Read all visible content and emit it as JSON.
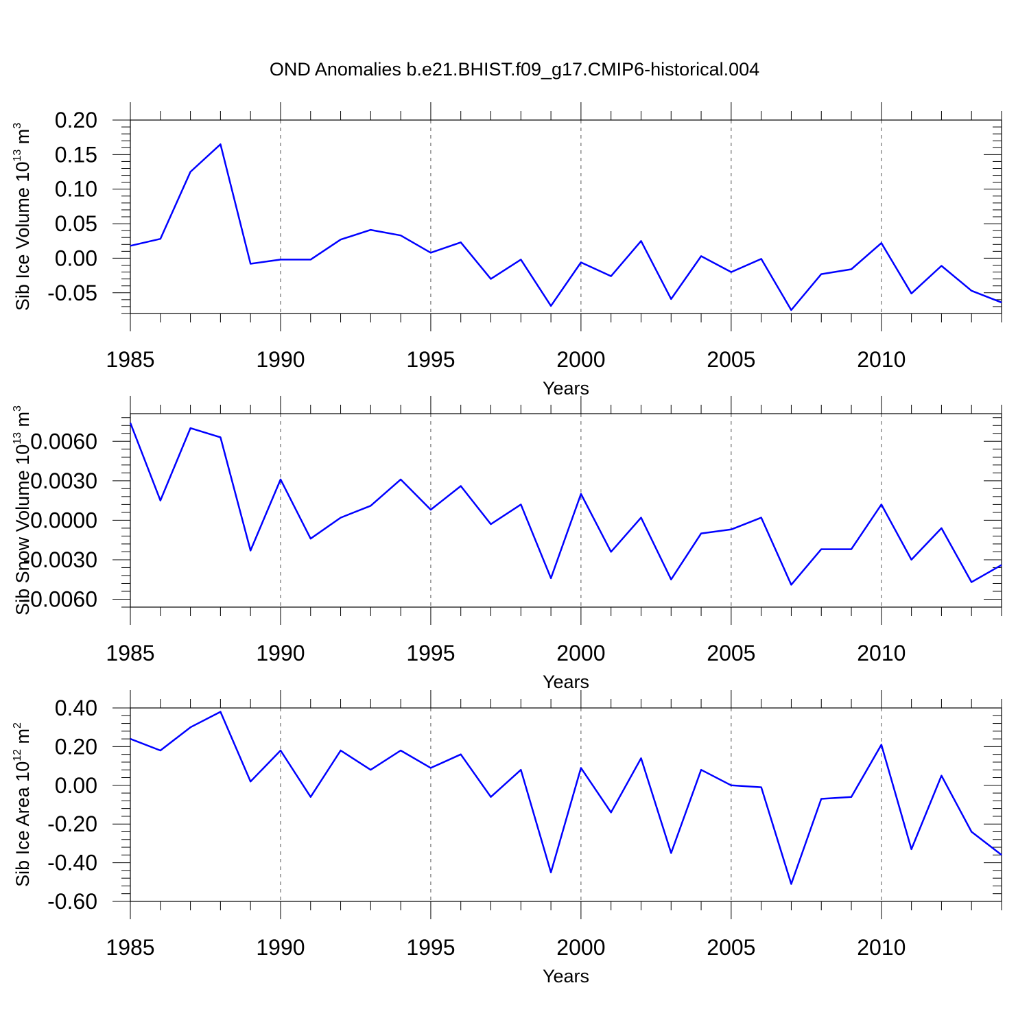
{
  "title": "OND Anomalies b.e21.BHIST.f09_g17.CMIP6-historical.004",
  "colors": {
    "line": "#0000ff",
    "axis": "#000000",
    "grid": "#555555"
  },
  "chart_data": [
    {
      "type": "line",
      "name": "sib-ice-volume",
      "ylabel": {
        "main": "Sib Ice Volume 10",
        "exp": "13",
        "unit": " m",
        "unit_exp": "3"
      },
      "xlabel": "Years",
      "xlim": [
        1985,
        2014
      ],
      "ylim": [
        -0.08,
        0.2
      ],
      "x_ticks": [
        1985,
        1990,
        1995,
        2000,
        2005,
        2010
      ],
      "x_tick_labels": [
        "1985",
        "1990",
        "1995",
        "2000",
        "2005",
        "2010"
      ],
      "y_ticks": [
        0.2,
        0.15,
        0.1,
        0.05,
        0.0,
        -0.05
      ],
      "y_tick_labels": [
        "0.20",
        "0.15",
        "0.10",
        "0.05",
        "0.00",
        "-0.05"
      ],
      "x": [
        1985,
        1986,
        1987,
        1988,
        1989,
        1990,
        1991,
        1992,
        1993,
        1994,
        1995,
        1996,
        1997,
        1998,
        1999,
        2000,
        2001,
        2002,
        2003,
        2004,
        2005,
        2006,
        2007,
        2008,
        2009,
        2010,
        2011,
        2012,
        2013,
        2014
      ],
      "values": [
        0.018,
        0.028,
        0.125,
        0.165,
        -0.008,
        -0.002,
        -0.002,
        0.027,
        0.041,
        0.033,
        0.008,
        0.023,
        -0.03,
        -0.002,
        -0.069,
        -0.006,
        -0.026,
        0.025,
        -0.059,
        0.003,
        -0.02,
        -0.001,
        -0.075,
        -0.023,
        -0.016,
        0.022,
        -0.051,
        -0.011,
        -0.047,
        -0.064
      ]
    },
    {
      "type": "line",
      "name": "sib-snow-volume",
      "ylabel": {
        "main": "Sib Snow Volume 10",
        "exp": "13",
        "unit": " m",
        "unit_exp": "3"
      },
      "xlabel": "Years",
      "xlim": [
        1985,
        2014
      ],
      "ylim": [
        -0.0066,
        0.0081
      ],
      "x_ticks": [
        1985,
        1990,
        1995,
        2000,
        2005,
        2010
      ],
      "x_tick_labels": [
        "1985",
        "1990",
        "1995",
        "2000",
        "2005",
        "2010"
      ],
      "y_ticks": [
        0.006,
        0.003,
        0.0,
        -0.003,
        -0.006
      ],
      "y_tick_labels": [
        "0.0060",
        "0.0030",
        "0.0000",
        "-0.0030",
        "-0.0060"
      ],
      "x": [
        1985,
        1986,
        1987,
        1988,
        1989,
        1990,
        1991,
        1992,
        1993,
        1994,
        1995,
        1996,
        1997,
        1998,
        1999,
        2000,
        2001,
        2002,
        2003,
        2004,
        2005,
        2006,
        2007,
        2008,
        2009,
        2010,
        2011,
        2012,
        2013,
        2014
      ],
      "values": [
        0.0074,
        0.0015,
        0.007,
        0.0063,
        -0.0023,
        0.0031,
        -0.0014,
        0.0002,
        0.0011,
        0.0031,
        0.0008,
        0.0026,
        -0.0003,
        0.0012,
        -0.0044,
        0.002,
        -0.0024,
        0.0002,
        -0.0045,
        -0.001,
        -0.0007,
        0.0002,
        -0.0049,
        -0.0022,
        -0.0022,
        0.0012,
        -0.003,
        -0.0006,
        -0.0047,
        -0.0034
      ]
    },
    {
      "type": "line",
      "name": "sib-ice-area",
      "ylabel": {
        "main": "Sib Ice Area 10",
        "exp": "12",
        "unit": " m",
        "unit_exp": "2"
      },
      "xlabel": "Years",
      "xlim": [
        1985,
        2014
      ],
      "ylim": [
        -0.6,
        0.4
      ],
      "x_ticks": [
        1985,
        1990,
        1995,
        2000,
        2005,
        2010
      ],
      "x_tick_labels": [
        "1985",
        "1990",
        "1995",
        "2000",
        "2005",
        "2010"
      ],
      "y_ticks": [
        0.4,
        0.2,
        0.0,
        -0.2,
        -0.4,
        -0.6
      ],
      "y_tick_labels": [
        "0.40",
        "0.20",
        "0.00",
        "-0.20",
        "-0.40",
        "-0.60"
      ],
      "x": [
        1985,
        1986,
        1987,
        1988,
        1989,
        1990,
        1991,
        1992,
        1993,
        1994,
        1995,
        1996,
        1997,
        1998,
        1999,
        2000,
        2001,
        2002,
        2003,
        2004,
        2005,
        2006,
        2007,
        2008,
        2009,
        2010,
        2011,
        2012,
        2013,
        2014
      ],
      "values": [
        0.24,
        0.18,
        0.3,
        0.38,
        0.02,
        0.18,
        -0.06,
        0.18,
        0.08,
        0.18,
        0.09,
        0.16,
        -0.06,
        0.08,
        -0.45,
        0.09,
        -0.14,
        0.14,
        -0.35,
        0.08,
        0.0,
        -0.01,
        -0.51,
        -0.07,
        -0.06,
        0.21,
        -0.33,
        0.05,
        -0.24,
        -0.36
      ]
    }
  ]
}
